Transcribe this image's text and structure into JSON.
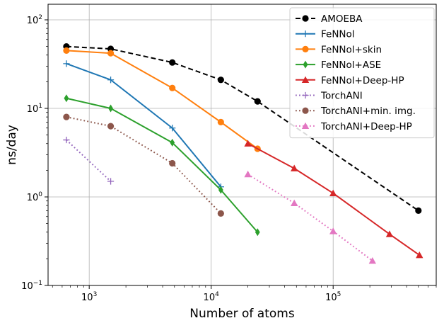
{
  "chart_data": {
    "type": "line",
    "xlabel": "Number of atoms",
    "ylabel": "ns/day",
    "xscale": "log",
    "yscale": "log",
    "xlim": [
      460,
      700000
    ],
    "ylim": [
      0.1,
      150
    ],
    "grid": true,
    "legend_position": "top-right",
    "x_ticks": [
      {
        "mantissa": "10",
        "exp": "3",
        "value": 1000
      },
      {
        "mantissa": "10",
        "exp": "4",
        "value": 10000
      },
      {
        "mantissa": "10",
        "exp": "5",
        "value": 100000
      }
    ],
    "y_ticks": [
      {
        "mantissa": "10",
        "exp": "−1",
        "value": 0.1
      },
      {
        "mantissa": "10",
        "exp": "0",
        "value": 1
      },
      {
        "mantissa": "10",
        "exp": "1",
        "value": 10
      },
      {
        "mantissa": "10",
        "exp": "2",
        "value": 100
      }
    ],
    "series": [
      {
        "name": "AMOEBA",
        "color": "#000000",
        "marker": "circle",
        "linestyle": "dashed",
        "x": [
          650,
          1500,
          4800,
          12000,
          24000,
          500000
        ],
        "y": [
          50,
          47,
          33,
          21,
          12,
          0.7
        ]
      },
      {
        "name": "FeNNol",
        "color": "#1f77b4",
        "marker": "plus",
        "linestyle": "solid",
        "x": [
          650,
          1500,
          4800,
          12000
        ],
        "y": [
          32,
          21,
          6.0,
          1.3
        ]
      },
      {
        "name": "FeNNol+skin",
        "color": "#ff7f0e",
        "marker": "circle",
        "linestyle": "solid",
        "x": [
          650,
          1500,
          4800,
          12000,
          24000
        ],
        "y": [
          45,
          42,
          17,
          7.0,
          3.5
        ]
      },
      {
        "name": "FeNNol+ASE",
        "color": "#2ca02c",
        "marker": "diamond",
        "linestyle": "solid",
        "x": [
          650,
          1500,
          4800,
          12000,
          24000
        ],
        "y": [
          13,
          10,
          4.1,
          1.2,
          0.4
        ]
      },
      {
        "name": "FeNNol+Deep-HP",
        "color": "#d62728",
        "marker": "triangle",
        "linestyle": "solid",
        "x": [
          20000,
          48000,
          100000,
          290000,
          510000
        ],
        "y": [
          4.0,
          2.1,
          1.1,
          0.38,
          0.22
        ]
      },
      {
        "name": "TorchANI",
        "color": "#9467bd",
        "marker": "plus",
        "linestyle": "dotted",
        "x": [
          650,
          1500
        ],
        "y": [
          4.4,
          1.5
        ]
      },
      {
        "name": "TorchANI+min. img.",
        "color": "#8c564b",
        "marker": "circle",
        "linestyle": "dotted",
        "x": [
          650,
          1500,
          4800,
          12000
        ],
        "y": [
          8.0,
          6.3,
          2.4,
          0.65
        ]
      },
      {
        "name": "TorchANI+Deep-HP",
        "color": "#e377c2",
        "marker": "triangle",
        "linestyle": "dotted",
        "x": [
          20000,
          48000,
          100000,
          210000
        ],
        "y": [
          1.8,
          0.85,
          0.41,
          0.19
        ]
      }
    ]
  }
}
